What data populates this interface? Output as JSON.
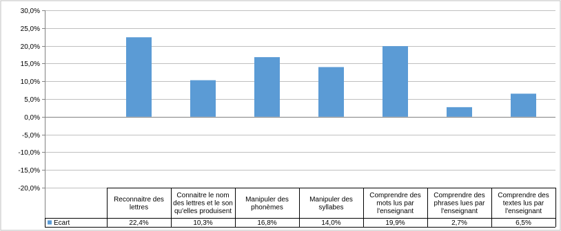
{
  "chart_data": {
    "type": "bar",
    "categories": [
      [
        "Reconnaitre des",
        "lettres"
      ],
      [
        "Connaitre le nom",
        "des lettres et le son",
        "qu'elles produisent"
      ],
      [
        "Manipuler des",
        "phonèmes"
      ],
      [
        "Manipuler des",
        "syllabes"
      ],
      [
        "Comprendre des",
        "mots lus par",
        "l'enseignant"
      ],
      [
        "Comprendre des",
        "phrases lues par",
        "l'enseignant"
      ],
      [
        "Comprendre des",
        "textes lus par",
        "l'enseignant"
      ]
    ],
    "series": [
      {
        "name": "Ecart",
        "color": "#5b9bd5",
        "values": [
          22.4,
          10.3,
          16.8,
          14.0,
          19.9,
          2.7,
          6.5
        ],
        "value_labels": [
          "22,4%",
          "10,3%",
          "16,8%",
          "14,0%",
          "19,9%",
          "2,7%",
          "6,5%"
        ]
      }
    ],
    "yticks": [
      "30,0%",
      "25,0%",
      "20,0%",
      "15,0%",
      "10,0%",
      "5,0%",
      "0,0%",
      "-5,0%",
      "-10,0%",
      "-15,0%",
      "-20,0%"
    ],
    "ylim": [
      -20,
      30
    ],
    "grid": true,
    "legend": "data-table",
    "title": "",
    "xlabel": "",
    "ylabel": ""
  }
}
